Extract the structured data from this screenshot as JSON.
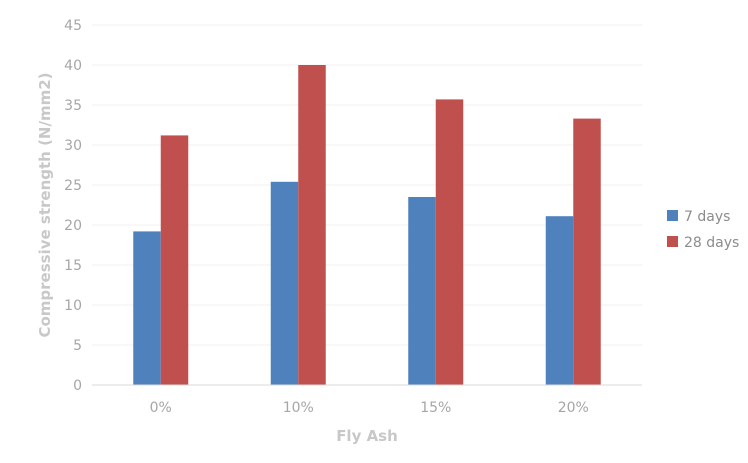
{
  "chart_data": {
    "type": "bar",
    "categories": [
      "0%",
      "10%",
      "15%",
      "20%"
    ],
    "series": [
      {
        "name": "7 days",
        "values": [
          19.2,
          25.4,
          23.5,
          21.1
        ],
        "color": "#4f81bd"
      },
      {
        "name": "28 days",
        "values": [
          31.2,
          40.0,
          35.7,
          33.3
        ],
        "color": "#c0504d"
      }
    ],
    "xlabel": "Fly Ash",
    "ylabel": "Compressive strength (N/mm2)",
    "ylim": [
      0,
      45
    ],
    "yticks": [
      0,
      5,
      10,
      15,
      20,
      25,
      30,
      35,
      40,
      45
    ],
    "grid": true,
    "legend_position": "right"
  }
}
